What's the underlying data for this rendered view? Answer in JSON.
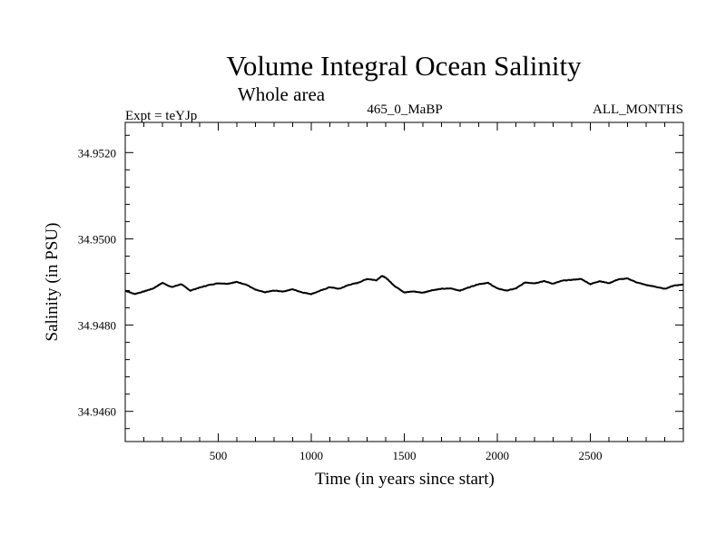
{
  "chart_data": {
    "type": "line",
    "title": "Volume Integral Ocean Salinity",
    "subtitle": "Whole area",
    "header_left": "Expt = teYJp",
    "header_center": "465_0_MaBP",
    "header_right": "ALL_MONTHS",
    "xlabel": "Time (in years since start)",
    "ylabel": "Salinity (in PSU)",
    "xlim": [
      0,
      3000
    ],
    "ylim": [
      34.9453,
      34.9527
    ],
    "x_ticks": [
      500,
      1000,
      1500,
      2000,
      2500
    ],
    "x_tick_labels": [
      "500",
      "1000",
      "1500",
      "2000",
      "2500"
    ],
    "y_ticks": [
      34.946,
      34.948,
      34.95,
      34.952
    ],
    "y_tick_labels": [
      "34.9460",
      "34.9480",
      "34.9500",
      "34.9520"
    ],
    "x_minor_step": 100,
    "y_minor_step": 0.0004,
    "grid": false,
    "line_color": "#000000",
    "series": [
      {
        "name": "salinity",
        "x": [
          0,
          50,
          100,
          150,
          200,
          250,
          300,
          350,
          400,
          450,
          500,
          550,
          600,
          650,
          700,
          750,
          800,
          850,
          900,
          950,
          1000,
          1050,
          1100,
          1150,
          1200,
          1250,
          1300,
          1350,
          1380,
          1400,
          1450,
          1500,
          1550,
          1600,
          1650,
          1700,
          1750,
          1800,
          1850,
          1900,
          1950,
          2000,
          2050,
          2100,
          2150,
          2200,
          2250,
          2300,
          2350,
          2400,
          2450,
          2500,
          2550,
          2600,
          2650,
          2700,
          2750,
          2800,
          2850,
          2900,
          2950,
          3000
        ],
        "values": [
          34.9488,
          34.94872,
          34.94878,
          34.94885,
          34.94898,
          34.94888,
          34.94895,
          34.9488,
          34.94887,
          34.94893,
          34.94897,
          34.94896,
          34.949,
          34.94894,
          34.94882,
          34.94876,
          34.9488,
          34.94878,
          34.94883,
          34.94876,
          34.94872,
          34.9488,
          34.94888,
          34.94884,
          34.94893,
          34.94898,
          34.94907,
          34.94904,
          34.94914,
          34.9491,
          34.9489,
          34.94876,
          34.94878,
          34.94875,
          34.94881,
          34.94884,
          34.94885,
          34.9488,
          34.94888,
          34.94895,
          34.94898,
          34.94885,
          34.9488,
          34.94885,
          34.94899,
          34.94897,
          34.94902,
          34.94896,
          34.94903,
          34.94905,
          34.94907,
          34.94895,
          34.94902,
          34.94897,
          34.94906,
          34.94908,
          34.94899,
          34.94893,
          34.94889,
          34.94884,
          34.94892,
          34.94894
        ]
      }
    ]
  }
}
